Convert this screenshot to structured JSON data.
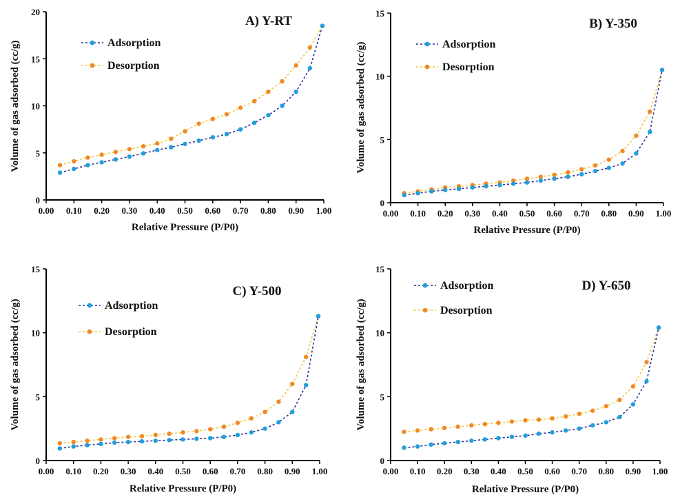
{
  "colors": {
    "adsorption": "#1f9fdc",
    "adsorption_line": "#2a2f9a",
    "desorption": "#f08a24",
    "desorption_line": "#f5c53a",
    "axis": "#000000"
  },
  "chart_data": [
    {
      "type": "line",
      "title": "A) Y-RT",
      "xlabel": "Relative Pressure (P/P0)",
      "ylabel": "Volume of gas adsorbed (cc/g)",
      "xlim": [
        0,
        1.0
      ],
      "ylim": [
        0,
        20
      ],
      "xticks": [
        "0.00",
        "0.10",
        "0.20",
        "0.30",
        "0.40",
        "0.50",
        "0.60",
        "0.70",
        "0.80",
        "0.90",
        "1.00"
      ],
      "yticks": [
        "0",
        "5",
        "10",
        "15",
        "20"
      ],
      "legend_position": "top-left",
      "series": [
        {
          "name": "Adsorption",
          "x": [
            0.05,
            0.1,
            0.15,
            0.2,
            0.25,
            0.3,
            0.35,
            0.4,
            0.45,
            0.5,
            0.55,
            0.6,
            0.65,
            0.7,
            0.75,
            0.8,
            0.85,
            0.9,
            0.95,
            0.995
          ],
          "y": [
            2.9,
            3.3,
            3.7,
            4.0,
            4.3,
            4.6,
            4.95,
            5.3,
            5.6,
            5.95,
            6.3,
            6.65,
            7.0,
            7.5,
            8.2,
            9.0,
            10.0,
            11.5,
            14.0,
            18.5
          ]
        },
        {
          "name": "Desorption",
          "x": [
            0.05,
            0.1,
            0.15,
            0.2,
            0.25,
            0.3,
            0.35,
            0.4,
            0.45,
            0.5,
            0.55,
            0.6,
            0.65,
            0.7,
            0.75,
            0.8,
            0.85,
            0.9,
            0.95,
            0.995
          ],
          "y": [
            3.7,
            4.1,
            4.5,
            4.8,
            5.1,
            5.4,
            5.7,
            6.0,
            6.5,
            7.3,
            8.1,
            8.6,
            9.1,
            9.8,
            10.5,
            11.5,
            12.6,
            14.3,
            16.2,
            18.5
          ]
        }
      ]
    },
    {
      "type": "line",
      "title": "B) Y-350",
      "xlabel": "Relative Pressure (P/P0)",
      "ylabel": "Volume of gas adsorbed (cc/g)",
      "xlim": [
        0,
        1.0
      ],
      "ylim": [
        0,
        15
      ],
      "xticks": [
        "0.00",
        "0.10",
        "0.20",
        "0.30",
        "0.40",
        "0.50",
        "0.60",
        "0.70",
        "0.80",
        "0.90",
        "1.00"
      ],
      "yticks": [
        "0",
        "5",
        "10",
        "15"
      ],
      "legend_position": "top-left",
      "series": [
        {
          "name": "Adsorption",
          "x": [
            0.05,
            0.1,
            0.15,
            0.2,
            0.25,
            0.3,
            0.35,
            0.4,
            0.45,
            0.5,
            0.55,
            0.6,
            0.65,
            0.7,
            0.75,
            0.8,
            0.85,
            0.9,
            0.95,
            0.995
          ],
          "y": [
            0.6,
            0.75,
            0.9,
            1.0,
            1.1,
            1.2,
            1.3,
            1.4,
            1.5,
            1.6,
            1.75,
            1.9,
            2.05,
            2.25,
            2.5,
            2.75,
            3.1,
            3.9,
            5.6,
            10.5
          ]
        },
        {
          "name": "Desorption",
          "x": [
            0.05,
            0.1,
            0.15,
            0.2,
            0.25,
            0.3,
            0.35,
            0.4,
            0.45,
            0.5,
            0.55,
            0.6,
            0.65,
            0.7,
            0.75,
            0.8,
            0.85,
            0.9,
            0.95,
            0.995
          ],
          "y": [
            0.75,
            0.9,
            1.05,
            1.2,
            1.3,
            1.4,
            1.5,
            1.6,
            1.75,
            1.9,
            2.05,
            2.2,
            2.4,
            2.65,
            2.95,
            3.4,
            4.1,
            5.3,
            7.2,
            10.5
          ]
        }
      ]
    },
    {
      "type": "line",
      "title": "C) Y-500",
      "xlabel": "Relative Pressure (P/P0)",
      "ylabel": "Volume of gas adsorbed (cc/g)",
      "xlim": [
        0,
        1.0
      ],
      "ylim": [
        0,
        15
      ],
      "xticks": [
        "0.00",
        "0.10",
        "0.20",
        "0.30",
        "0.40",
        "0.50",
        "0.60",
        "0.70",
        "0.80",
        "0.90",
        "1.00"
      ],
      "yticks": [
        "0",
        "5",
        "10",
        "15"
      ],
      "legend_position": "top-left",
      "series": [
        {
          "name": "Adsorption",
          "x": [
            0.05,
            0.1,
            0.15,
            0.2,
            0.25,
            0.3,
            0.35,
            0.4,
            0.45,
            0.5,
            0.55,
            0.6,
            0.65,
            0.7,
            0.75,
            0.8,
            0.85,
            0.9,
            0.95,
            0.995
          ],
          "y": [
            0.95,
            1.1,
            1.2,
            1.3,
            1.4,
            1.45,
            1.5,
            1.55,
            1.6,
            1.65,
            1.7,
            1.75,
            1.85,
            2.0,
            2.2,
            2.5,
            3.0,
            3.8,
            5.9,
            11.3
          ]
        },
        {
          "name": "Desorption",
          "x": [
            0.05,
            0.1,
            0.15,
            0.2,
            0.25,
            0.3,
            0.35,
            0.4,
            0.45,
            0.5,
            0.55,
            0.6,
            0.65,
            0.7,
            0.75,
            0.8,
            0.85,
            0.9,
            0.95,
            0.995
          ],
          "y": [
            1.35,
            1.45,
            1.55,
            1.65,
            1.75,
            1.85,
            1.9,
            2.0,
            2.1,
            2.2,
            2.3,
            2.45,
            2.65,
            2.95,
            3.3,
            3.8,
            4.6,
            6.0,
            8.1,
            11.3
          ]
        }
      ]
    },
    {
      "type": "line",
      "title": "D) Y-650",
      "xlabel": "Relative Pressure (P/P0)",
      "ylabel": "Volume of gas adsorbed (cc/g)",
      "xlim": [
        0,
        1.0
      ],
      "ylim": [
        0,
        15
      ],
      "xticks": [
        "0.00",
        "0.10",
        "0.20",
        "0.30",
        "0.40",
        "0.50",
        "0.60",
        "0.70",
        "0.80",
        "0.90",
        "1.00"
      ],
      "yticks": [
        "0",
        "5",
        "10",
        "15"
      ],
      "legend_position": "top-left",
      "series": [
        {
          "name": "Adsorption",
          "x": [
            0.05,
            0.1,
            0.15,
            0.2,
            0.25,
            0.3,
            0.35,
            0.4,
            0.45,
            0.5,
            0.55,
            0.6,
            0.65,
            0.7,
            0.75,
            0.8,
            0.85,
            0.9,
            0.95,
            0.995
          ],
          "y": [
            1.0,
            1.1,
            1.25,
            1.35,
            1.45,
            1.55,
            1.65,
            1.75,
            1.85,
            1.95,
            2.1,
            2.2,
            2.35,
            2.5,
            2.75,
            3.0,
            3.4,
            4.4,
            6.2,
            10.4
          ]
        },
        {
          "name": "Desorption",
          "x": [
            0.05,
            0.1,
            0.15,
            0.2,
            0.25,
            0.3,
            0.35,
            0.4,
            0.45,
            0.5,
            0.55,
            0.6,
            0.65,
            0.7,
            0.75,
            0.8,
            0.85,
            0.9,
            0.95,
            0.995
          ],
          "y": [
            2.25,
            2.35,
            2.45,
            2.55,
            2.65,
            2.75,
            2.85,
            2.95,
            3.05,
            3.15,
            3.2,
            3.3,
            3.45,
            3.65,
            3.9,
            4.25,
            4.75,
            5.8,
            7.7,
            10.4
          ]
        }
      ]
    }
  ]
}
